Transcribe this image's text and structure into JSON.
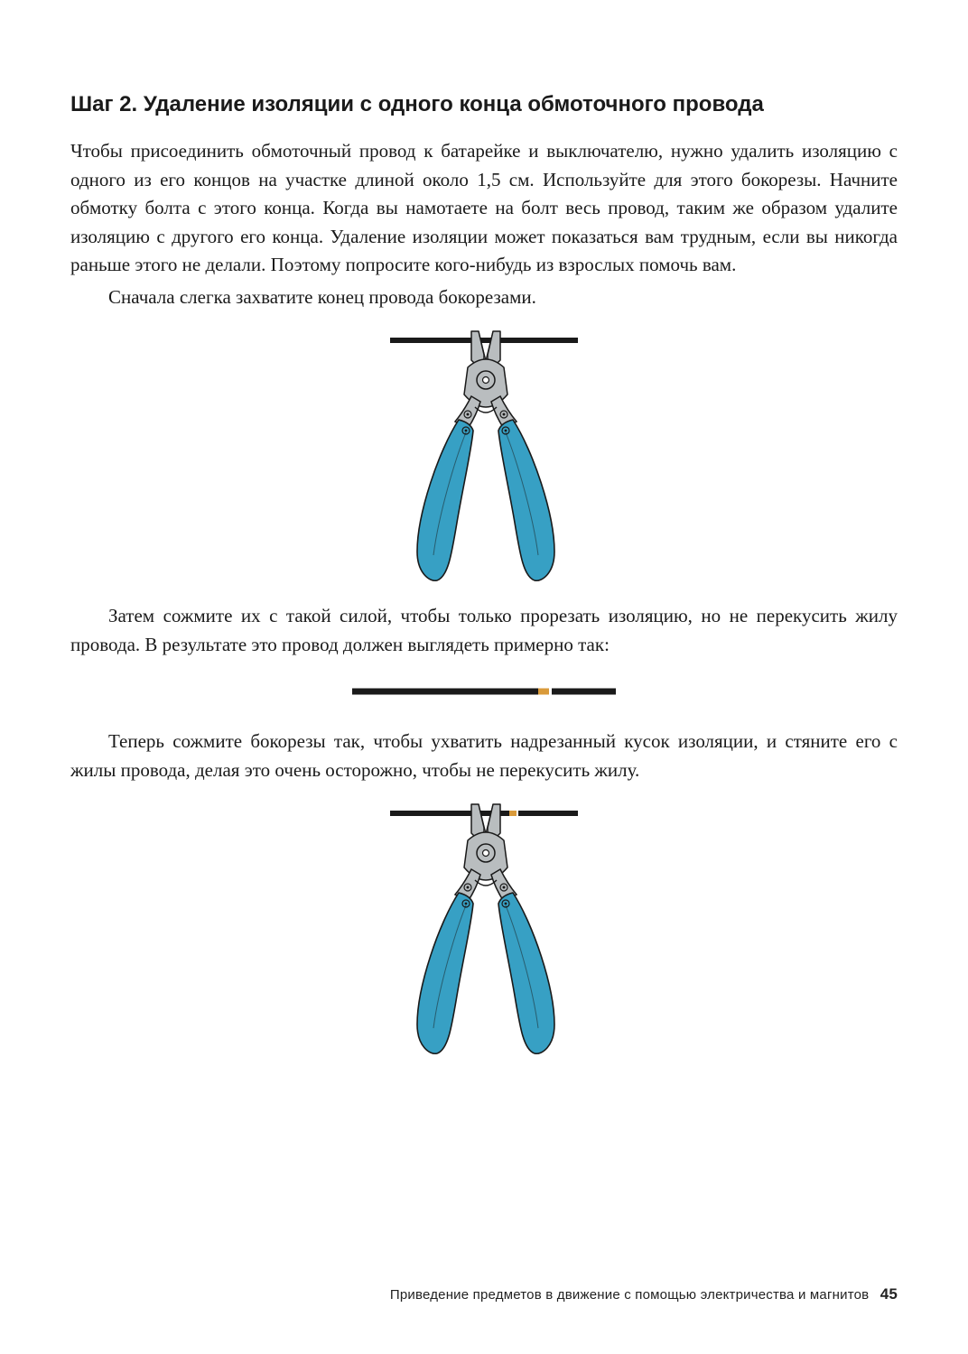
{
  "heading": "Шаг 2. Удаление изоляции с одного конца обмоточного провода",
  "para1": "Чтобы присоединить обмоточный провод к батарейке и выключателю, нужно удалить изоляцию с одного из его концов на участке длиной около 1,5 см. Используйте для этого бокорезы. Начните обмотку болта с этого конца. Когда вы намотаете на болт весь провод, таким же образом удалите изоляцию с другого его конца. Удаление изоляции может показаться вам трудным, если вы никогда раньше этого не делали. Поэтому попросите кого-нибудь из взрослых помочь вам.",
  "para2": "Сначала слегка захватите конец провода бокорезами.",
  "para3": "Затем сожмите их с такой силой, чтобы только прорезать изоляцию, но не перекусить жилу провода. В результате это провод должен выглядеть примерно так:",
  "para4": "Теперь сожмите бокорезы так, чтобы ухватить надрезанный кусок изоляции, и стяните его с жилы провода, делая это очень осторожно, чтобы не перекусить жилу.",
  "footer_text": "Приведение предметов в движение с помощью электричества и магнитов",
  "page_number": "45",
  "diagram": {
    "type": "infographic",
    "wire_color": "#1a1a1a",
    "wire_stroke": 6,
    "copper_color": "#d99a3a",
    "plier_metal_fill": "#b9bdbf",
    "plier_metal_stroke": "#1a1a1a",
    "plier_handle_fill": "#37a0c4",
    "plier_handle_stroke": "#1a1a1a",
    "background": "#ffffff",
    "fig1_width": 220,
    "fig1_height": 290,
    "fig2_width": 300,
    "fig2_height": 20,
    "fig3_width": 220,
    "fig3_height": 290
  }
}
